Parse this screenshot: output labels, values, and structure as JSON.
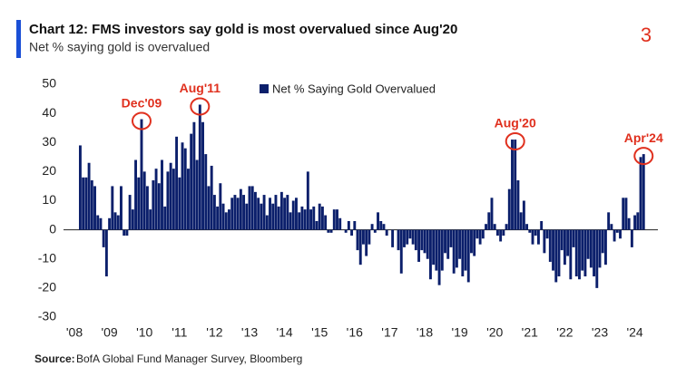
{
  "page_number": "3",
  "chart_data": {
    "type": "bar",
    "title": "Chart 12: FMS investors say gold is most overvalued since Aug'20",
    "subtitle": "Net % saying gold is overvalued",
    "source_label": "Source:",
    "source": "BofA Global Fund Manager Survey, Bloomberg",
    "categories": [
      "'08",
      null,
      null,
      null,
      null,
      null,
      null,
      null,
      null,
      null,
      null,
      null,
      "'09",
      null,
      null,
      null,
      null,
      null,
      null,
      null,
      null,
      null,
      null,
      null,
      "'10",
      null,
      null,
      null,
      null,
      null,
      null,
      null,
      null,
      null,
      null,
      null,
      "'11",
      null,
      null,
      null,
      null,
      null,
      null,
      null,
      null,
      null,
      null,
      null,
      "'12",
      null,
      null,
      null,
      null,
      null,
      null,
      null,
      null,
      null,
      null,
      null,
      "'13",
      null,
      null,
      null,
      null,
      null,
      null,
      null,
      null,
      null,
      null,
      null,
      "'14",
      null,
      null,
      null,
      null,
      null,
      null,
      null,
      null,
      null,
      null,
      null,
      "'15",
      null,
      null,
      null,
      null,
      null,
      null,
      null,
      null,
      null,
      null,
      null,
      "'16",
      null,
      null,
      null,
      null,
      null,
      null,
      null,
      null,
      null,
      null,
      null,
      "'17",
      null,
      null,
      null,
      null,
      null,
      null,
      null,
      null,
      null,
      null,
      null,
      "'18",
      null,
      null,
      null,
      null,
      null,
      null,
      null,
      null,
      null,
      null,
      null,
      "'19",
      null,
      null,
      null,
      null,
      null,
      null,
      null,
      null,
      null,
      null,
      null,
      "'20",
      null,
      null,
      null,
      null,
      null,
      null,
      null,
      null,
      null,
      null,
      null,
      "'21",
      null,
      null,
      null,
      null,
      null,
      null,
      null,
      null,
      null,
      null,
      null,
      "'22",
      null,
      null,
      null,
      null,
      null,
      null,
      null,
      null,
      null,
      null,
      null,
      "'23",
      null,
      null,
      null,
      null,
      null,
      null,
      null,
      null,
      null,
      null,
      null,
      "'24",
      null,
      null,
      null
    ],
    "series": [
      {
        "name": "Net % Saying Gold Overvalued",
        "color": "#0b1f6b",
        "values": [
          null,
          null,
          29,
          18,
          18,
          23,
          17,
          15,
          5,
          4,
          -6,
          -16,
          4,
          15,
          6,
          5,
          15,
          -2,
          -2,
          12,
          7,
          24,
          18,
          38,
          20,
          15,
          7,
          17,
          21,
          16,
          24,
          8,
          20,
          23,
          21,
          32,
          18,
          30,
          28,
          21,
          33,
          37,
          24,
          43,
          37,
          26,
          15,
          22,
          12,
          8,
          16,
          9,
          6,
          7,
          11,
          12,
          11,
          14,
          12,
          9,
          15,
          15,
          13,
          11,
          9,
          12,
          5,
          11,
          9,
          12,
          8,
          13,
          11,
          12,
          6,
          10,
          11,
          6,
          8,
          7,
          20,
          7,
          8,
          3,
          9,
          8,
          5,
          -1,
          -1,
          7,
          7,
          4,
          0,
          -1,
          3,
          -2,
          3,
          -7,
          -12,
          -5,
          -9,
          -5,
          2,
          -1,
          6,
          3,
          2,
          -2,
          0,
          -6,
          0,
          -7,
          -15,
          -6,
          -5,
          -3,
          -5,
          -7,
          -11,
          -7,
          -8,
          -10,
          -17,
          -12,
          -14,
          -19,
          -14,
          -8,
          -10,
          -6,
          -15,
          -13,
          -10,
          -16,
          -14,
          -18,
          -8,
          -9,
          -3,
          -5,
          -3,
          2,
          6,
          11,
          2,
          -2,
          -4,
          -2,
          2,
          14,
          31,
          31,
          17,
          6,
          10,
          2,
          -1,
          -5,
          -2,
          -5,
          3,
          -8,
          -3,
          -11,
          -14,
          -18,
          -16,
          -7,
          -12,
          -9,
          -17,
          -6,
          -16,
          -17,
          -14,
          -16,
          -10,
          -13,
          -16,
          -20,
          -13,
          -8,
          -12,
          6,
          2,
          -4,
          -1,
          -3,
          11,
          11,
          4,
          -6,
          5,
          6,
          25,
          26
        ]
      }
    ],
    "annotations": [
      "Dec'09",
      "Aug'11",
      "Aug'20",
      "Apr'24"
    ],
    "annotation_color": "#e0301e",
    "ylim": [
      -30,
      50
    ],
    "yticks": [
      -30,
      -20,
      -10,
      0,
      10,
      20,
      30,
      40,
      50
    ],
    "legend": "top"
  }
}
